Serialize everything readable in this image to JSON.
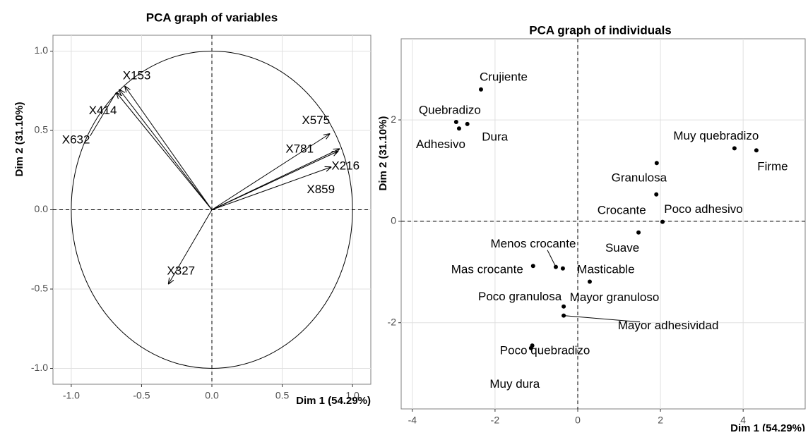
{
  "chart_data": [
    {
      "type": "arrow",
      "title": "PCA graph of variables",
      "x_label": "Dim 1 (54.29%)",
      "y_label": "Dim 2 (31.10%)",
      "labels": [
        "X153",
        "X414",
        "X632",
        "X575",
        "X781",
        "X216",
        "X859",
        "X327"
      ],
      "x": [
        -0.62,
        -0.66,
        -0.68,
        0.84,
        0.91,
        0.9,
        0.85,
        -0.31
      ],
      "y": [
        0.78,
        0.76,
        0.74,
        0.48,
        0.385,
        0.37,
        0.27,
        -0.47
      ],
      "color": "#000000",
      "xlim": [
        -1.13,
        1.13
      ],
      "ylim": [
        -1.1,
        1.1
      ],
      "xticks": [
        {
          "value": -1,
          "label": "-1.0"
        },
        {
          "value": -0.5,
          "label": "-0.5"
        },
        {
          "value": 0,
          "label": "0.0"
        },
        {
          "value": 0.5,
          "label": "0.5"
        },
        {
          "value": 1,
          "label": "1.0"
        }
      ],
      "yticks": [
        {
          "value": -1,
          "label": "-1.0"
        },
        {
          "value": -0.5,
          "label": "-0.5"
        },
        {
          "value": 0,
          "label": "0.0"
        },
        {
          "value": 0.5,
          "label": "0.5"
        },
        {
          "value": 1,
          "label": "1.0"
        }
      ],
      "grid": true
    },
    {
      "type": "scatter",
      "title": "PCA graph of individuals",
      "x_label": "Dim 1 (54.29%)",
      "y_label": "Dim 2 (31.10%)",
      "labels": [
        "Crujiente",
        "Quebradizo",
        "Adhesivo",
        "Dura",
        "Muy quebradizo",
        "Firme",
        "Granulosa",
        "Crocante",
        "Poco adhesivo",
        "Suave",
        "Menos crocante",
        "Mas crocante",
        "Masticable",
        "Mayor granuloso",
        "Poco granulosa",
        "Mayor adhesividad",
        "Poco quebradizo",
        "Muy dura"
      ],
      "x": [
        -2.34,
        -2.94,
        -2.87,
        -2.67,
        3.79,
        4.32,
        1.91,
        1.9,
        2.05,
        1.47,
        -0.53,
        -1.08,
        -0.36,
        0.29,
        -0.34,
        -0.34,
        -1.1,
        -1.13
      ],
      "y": [
        2.6,
        1.96,
        1.83,
        1.92,
        1.44,
        1.4,
        1.15,
        0.53,
        -0.01,
        -0.22,
        -0.9,
        -0.88,
        -0.93,
        -1.19,
        -1.68,
        -1.86,
        -2.45,
        -2.5
      ],
      "color": "#000000",
      "xlim": [
        -4.27,
        5.5
      ],
      "ylim": [
        -3.7,
        3.6
      ],
      "xticks": [
        -4,
        -2,
        0,
        2,
        4
      ],
      "yticks": [
        -2,
        0,
        2
      ],
      "grid": true
    }
  ]
}
